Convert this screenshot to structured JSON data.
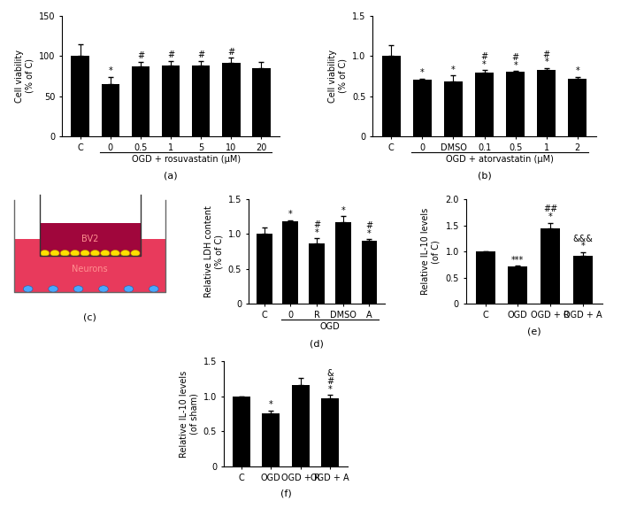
{
  "chart_data": [
    {
      "type": "bar",
      "title": "(a)",
      "y_label": "Cell viability\n(% of C)",
      "categories": [
        "C",
        "0",
        "0.5",
        "1",
        "5",
        "10",
        "20"
      ],
      "values": [
        100,
        65,
        87,
        88,
        88,
        91,
        85
      ],
      "errors": [
        14,
        9,
        6,
        6,
        6,
        7,
        7
      ],
      "annotations": [
        null,
        "*",
        "#",
        "#",
        "#",
        "#",
        null
      ],
      "group_label": "OGD + rosuvastatin (μM)",
      "color": "#000000",
      "ylim": [
        0,
        150
      ],
      "yticks": [
        0,
        50,
        100,
        150
      ]
    },
    {
      "type": "bar",
      "title": "(b)",
      "y_label": "Cell viability\n(% of C)",
      "categories": [
        "C",
        "0",
        "DMSO",
        "0.1",
        "0.5",
        "1",
        "2"
      ],
      "values": [
        1.0,
        0.7,
        0.68,
        0.79,
        0.8,
        0.82,
        0.71
      ],
      "errors": [
        0.13,
        0.02,
        0.08,
        0.03,
        0.01,
        0.03,
        0.03
      ],
      "annotations": [
        null,
        "*",
        "*",
        "#\n*",
        "#\n*",
        "#\n*",
        "*"
      ],
      "group_label": "OGD + atorvastatin (μM)",
      "color": "#000000",
      "ylim": [
        0,
        1.5
      ],
      "yticks": [
        0,
        0.5,
        1.0,
        1.5
      ]
    },
    {
      "type": "diagram",
      "title": "(c)",
      "labels": [
        "BV2",
        "Neurons"
      ]
    },
    {
      "type": "bar",
      "title": "(d)",
      "y_label": "Relative LDH content\n(% of C)",
      "categories": [
        "C",
        "0",
        "R",
        "DMSO",
        "A"
      ],
      "values": [
        1.0,
        1.18,
        0.86,
        1.17,
        0.9
      ],
      "errors": [
        0.1,
        0.02,
        0.08,
        0.09,
        0.03
      ],
      "annotations": [
        null,
        "*",
        "#\n*",
        "*",
        "#\n*"
      ],
      "group_label": "OGD",
      "color": "#000000",
      "ylim": [
        0,
        1.5
      ],
      "yticks": [
        0,
        0.5,
        1.0,
        1.5
      ]
    },
    {
      "type": "bar",
      "title": "(e)",
      "y_label": "Relative IL-10 levels\n(of C)",
      "categories": [
        "C",
        "OGD",
        "OGD + R",
        "OGD + A"
      ],
      "values": [
        1.0,
        0.71,
        1.45,
        0.91
      ],
      "errors": [
        0,
        0.02,
        0.1,
        0.08
      ],
      "annotations": [
        null,
        "***",
        "##\n*",
        "&&&\n*"
      ],
      "color": "#000000",
      "ylim": [
        0,
        2.0
      ],
      "yticks": [
        0,
        0.5,
        1.0,
        1.5,
        2.0
      ]
    },
    {
      "type": "bar",
      "title": "(f)",
      "y_label": "Relative IL-10 levels\n(of sham)",
      "categories": [
        "C",
        "OGD",
        "OGD + R",
        "OGD + A"
      ],
      "values": [
        1.0,
        0.76,
        1.17,
        0.98
      ],
      "errors": [
        0,
        0.04,
        0.09,
        0.04
      ],
      "annotations": [
        null,
        "*",
        null,
        "&\n#\n*"
      ],
      "color": "#000000",
      "ylim": [
        0,
        1.5
      ],
      "yticks": [
        0,
        0.5,
        1.0,
        1.5
      ]
    }
  ]
}
